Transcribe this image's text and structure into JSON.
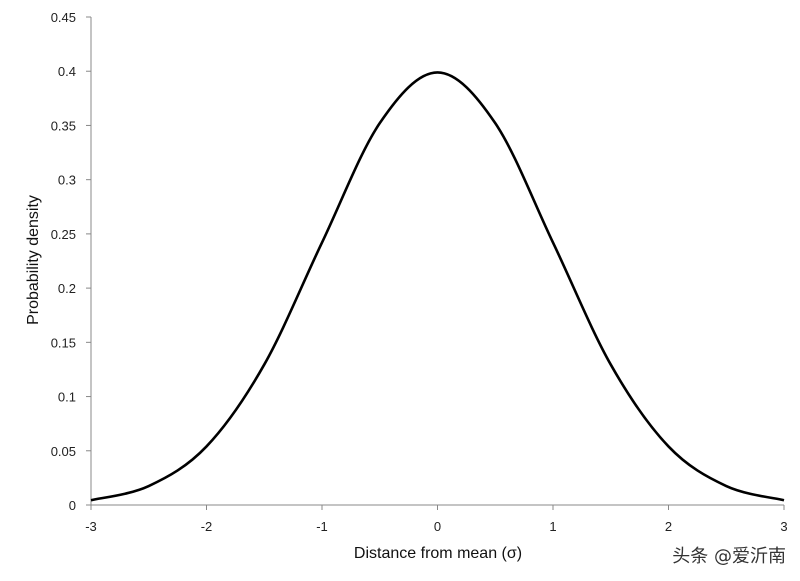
{
  "chart_data": {
    "type": "line",
    "title": "",
    "xlabel": "Distance from mean (σ)",
    "ylabel": "Probability density",
    "xlim": [
      -3,
      3
    ],
    "ylim": [
      0,
      0.45
    ],
    "x_ticks": [
      "-3",
      "-2",
      "-1",
      "0",
      "1",
      "2",
      "3"
    ],
    "y_ticks": [
      "0",
      "0.05",
      "0.1",
      "0.15",
      "0.2",
      "0.25",
      "0.3",
      "0.35",
      "0.4",
      "0.45"
    ],
    "grid": false,
    "legend": "none",
    "series": [
      {
        "color": "#000000",
        "x": [
          -3,
          -2.5,
          -2,
          -1.5,
          -1,
          -0.5,
          0,
          0.5,
          1,
          1.5,
          2,
          2.5,
          3
        ],
        "y": [
          0.0044,
          0.0175,
          0.054,
          0.1295,
          0.242,
          0.3521,
          0.3989,
          0.3521,
          0.242,
          0.1295,
          0.054,
          0.0175,
          0.0044
        ]
      }
    ]
  },
  "watermark": "头条 @爱沂南"
}
